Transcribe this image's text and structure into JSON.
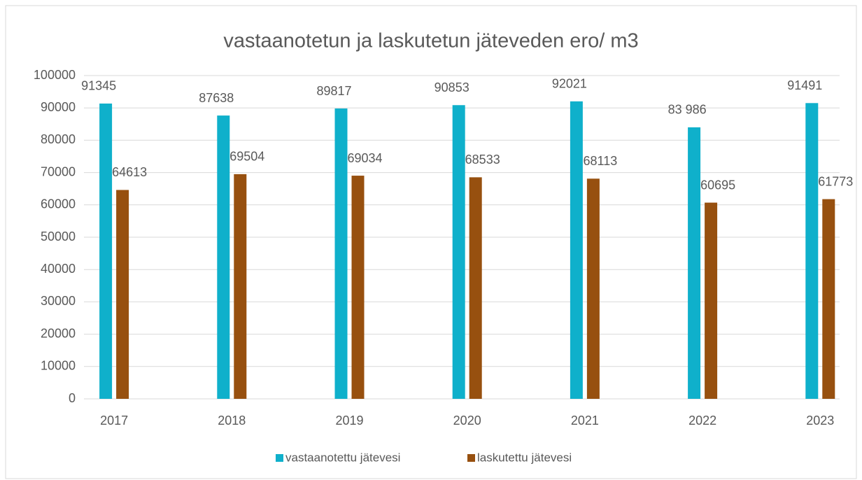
{
  "chart_data": {
    "type": "bar",
    "title": "vastaanotetun ja laskutetun jäteveden ero/ m3",
    "categories": [
      "2017",
      "2018",
      "2019",
      "2020",
      "2021",
      "2022",
      "2023"
    ],
    "series": [
      {
        "name": "vastaanotettu jätevesi",
        "color": "#0fb0cb",
        "values": [
          91345,
          87638,
          89817,
          90853,
          92021,
          83986,
          91491
        ],
        "value_labels": [
          "91345",
          "87638",
          "89817",
          "90853",
          "92021",
          "83 986",
          "91491"
        ]
      },
      {
        "name": "laskutettu jätevesi",
        "color": "#97500f",
        "values": [
          64613,
          69504,
          69034,
          68533,
          68113,
          60695,
          61773
        ]
      }
    ],
    "ylim": [
      0,
      100000
    ],
    "yticks": [
      0,
      10000,
      20000,
      30000,
      40000,
      50000,
      60000,
      70000,
      80000,
      90000,
      100000
    ],
    "grid": true,
    "legend": "bottom"
  }
}
